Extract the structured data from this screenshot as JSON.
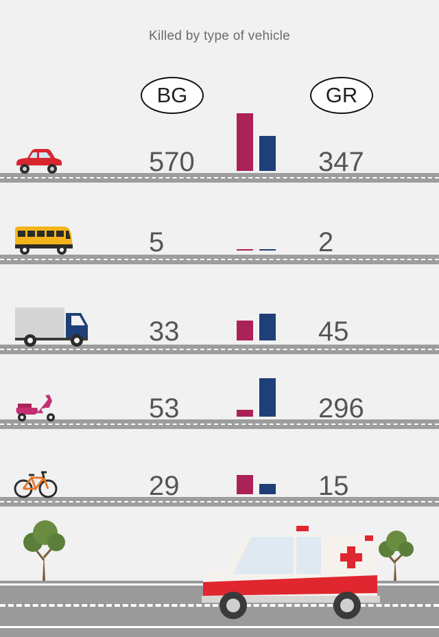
{
  "chart_data": {
    "type": "bar",
    "title": "Killed by type of vehicle",
    "categories": [
      "car",
      "bus",
      "truck",
      "scooter",
      "bicycle"
    ],
    "series": [
      {
        "name": "BG",
        "color": "#ab2158",
        "values": [
          570,
          5,
          33,
          53,
          29
        ]
      },
      {
        "name": "GR",
        "color": "#1e3f78",
        "values": [
          347,
          2,
          45,
          296,
          15
        ]
      }
    ],
    "scales": {
      "car": 570,
      "bus": 570,
      "truck": 52,
      "scooter": 296,
      "bicycle": 60
    },
    "icons": [
      "car-icon",
      "bus-icon",
      "truck-icon",
      "scooter-icon",
      "bicycle-icon",
      "ambulance-icon",
      "tree-icon"
    ]
  }
}
